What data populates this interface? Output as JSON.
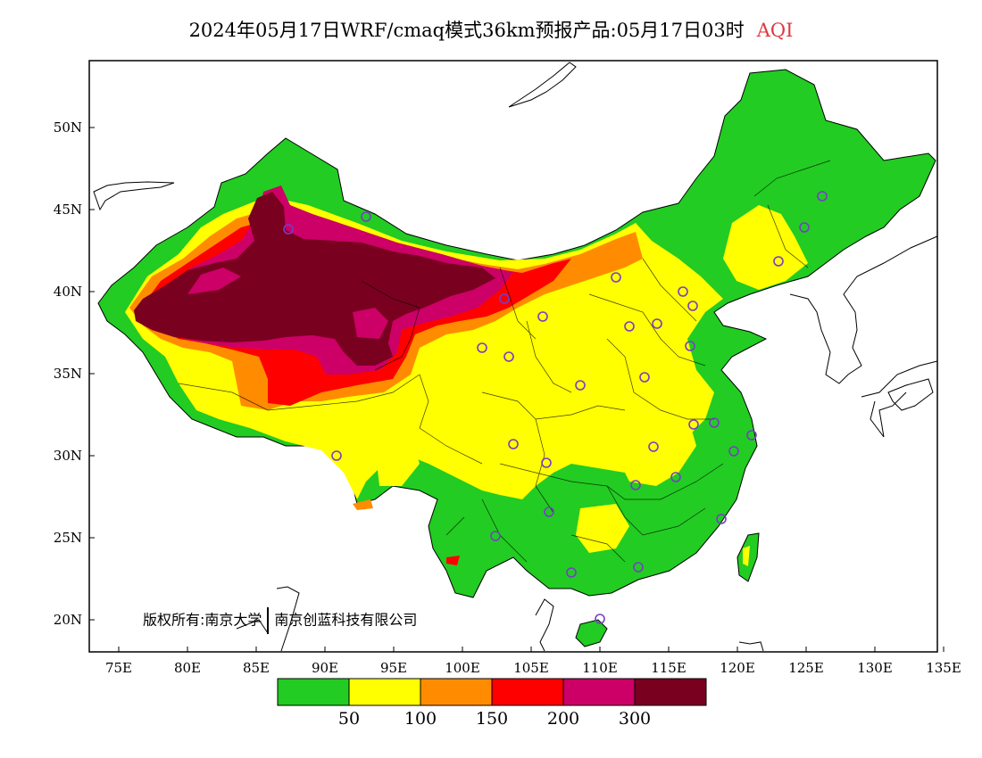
{
  "title": {
    "main": "2024年05月17日WRF/cmaq模式36km预报产品:05月17日03时",
    "variable": "AQI"
  },
  "copyright": {
    "left": "版权所有:南京大学",
    "right": "南京创蓝科技有限公司"
  },
  "axes": {
    "lon_ticks": [
      "75E",
      "80E",
      "85E",
      "90E",
      "95E",
      "100E",
      "105E",
      "110E",
      "115E",
      "120E",
      "125E",
      "130E",
      "135E"
    ],
    "lat_ticks": [
      "20N",
      "25N",
      "30N",
      "35N",
      "40N",
      "45N",
      "50N"
    ]
  },
  "legend": {
    "colors": [
      "#22cc22",
      "#ffff00",
      "#ff8c00",
      "#ff0000",
      "#cc0066",
      "#7a0020"
    ],
    "labels": [
      "50",
      "100",
      "150",
      "200",
      "300"
    ]
  },
  "map_data": {
    "extent": {
      "lon": [
        73,
        135
      ],
      "lat": [
        18,
        54
      ]
    },
    "levels": {
      "good": "#22cc22",
      "moderate": "#ffff00",
      "unhealthy_sensitive": "#ff8c00",
      "unhealthy": "#ff0000",
      "very_unhealthy": "#cc0066",
      "hazardous": "#7a0020"
    }
  }
}
